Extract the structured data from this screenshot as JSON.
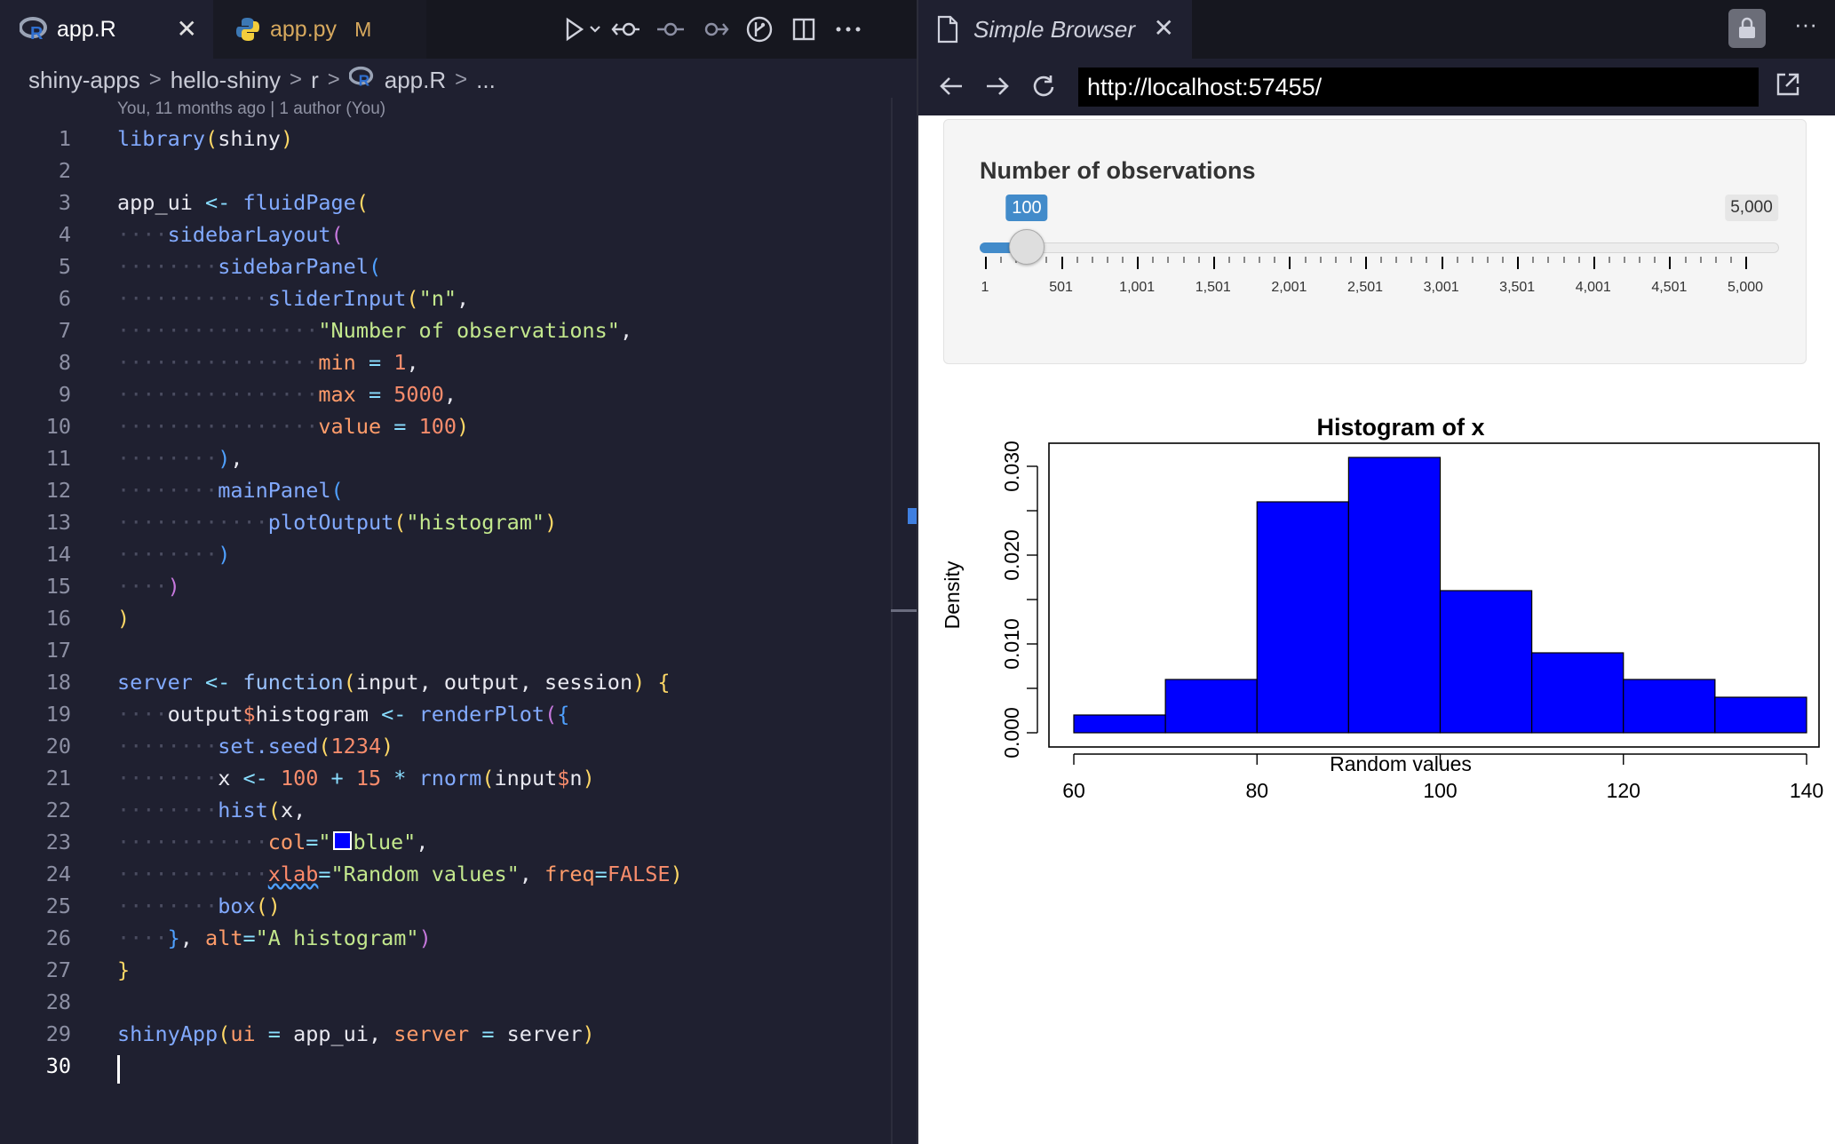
{
  "editor": {
    "tabs": [
      {
        "label": "app.R",
        "icon": "r-icon",
        "active": true
      },
      {
        "label": "app.py",
        "icon": "python-icon",
        "badge": "M",
        "active": false
      }
    ],
    "breadcrumb": [
      "shiny-apps",
      "hello-shiny",
      "r",
      "app.R",
      "..."
    ],
    "blame": "You, 11 months ago | 1 author (You)",
    "line_numbers": [
      "1",
      "2",
      "3",
      "4",
      "5",
      "6",
      "7",
      "8",
      "9",
      "10",
      "11",
      "12",
      "13",
      "14",
      "15",
      "16",
      "17",
      "18",
      "19",
      "20",
      "21",
      "22",
      "23",
      "24",
      "25",
      "26",
      "27",
      "28",
      "29",
      "30"
    ],
    "code": {
      "l1_a": "library",
      "l1_b": "(",
      "l1_c": "shiny",
      "l1_d": ")",
      "l3_a": "app_ui",
      "l3_b": " <- ",
      "l3_c": "fluidPage",
      "l3_d": "(",
      "l4_a": "sidebarLayout",
      "l4_b": "(",
      "l5_a": "sidebarPanel",
      "l5_b": "(",
      "l6_a": "sliderInput",
      "l6_b": "(",
      "l6_c": "\"n\"",
      "l6_d": ",",
      "l7_a": "\"Number of observations\"",
      "l7_b": ",",
      "l8_a": "min",
      "l8_b": " = ",
      "l8_c": "1",
      "l8_d": ",",
      "l9_a": "max",
      "l9_b": " = ",
      "l9_c": "5000",
      "l9_d": ",",
      "l10_a": "value",
      "l10_b": " = ",
      "l10_c": "100",
      "l10_d": ")",
      "l11_a": ")",
      "l11_b": ",",
      "l12_a": "mainPanel",
      "l12_b": "(",
      "l13_a": "plotOutput",
      "l13_b": "(",
      "l13_c": "\"histogram\"",
      "l13_d": ")",
      "l14_a": ")",
      "l15_a": ")",
      "l16_a": ")",
      "l18_a": "server",
      "l18_b": " <- ",
      "l18_c": "function",
      "l18_d": "(",
      "l18_e": "input, output, session",
      "l18_f": ")",
      "l18_g": " {",
      "l19_a": "output",
      "l19_b": "$",
      "l19_c": "histogram",
      "l19_d": " <- ",
      "l19_e": "renderPlot",
      "l19_f": "(",
      "l19_g": "{",
      "l20_a": "set.seed",
      "l20_b": "(",
      "l20_c": "1234",
      "l20_d": ")",
      "l21_a": "x",
      "l21_b": " <- ",
      "l21_c": "100",
      "l21_d": " + ",
      "l21_e": "15",
      "l21_f": " * ",
      "l21_g": "rnorm",
      "l21_h": "(",
      "l21_i": "input",
      "l21_j": "$",
      "l21_k": "n",
      "l21_l": ")",
      "l22_a": "hist",
      "l22_b": "(",
      "l22_c": "x,",
      "l23_a": "col",
      "l23_b": "=",
      "l23_c": "\"",
      "l23_d": "blue\"",
      "l23_e": ",",
      "l24_a": "xlab",
      "l24_b": "=",
      "l24_c": "\"Random values\"",
      "l24_d": ", ",
      "l24_e": "freq",
      "l24_f": "=",
      "l24_g": "FALSE",
      "l24_h": ")",
      "l25_a": "box",
      "l25_b": "()",
      "l26_a": "}",
      "l26_b": ", ",
      "l26_c": "alt",
      "l26_d": "=",
      "l26_e": "\"A histogram\"",
      "l26_f": ")",
      "l27_a": "}",
      "l29_a": "shinyApp",
      "l29_b": "(",
      "l29_c": "ui",
      "l29_d": " = ",
      "l29_e": "app_ui",
      "l29_f": ", ",
      "l29_g": "server",
      "l29_h": " = ",
      "l29_i": "server",
      "l29_j": ")"
    }
  },
  "browser": {
    "tab_label": "Simple Browser",
    "url": "http://localhost:57455/",
    "slider": {
      "label": "Number of observations",
      "min": 1,
      "max": 5000,
      "value": 100,
      "value_label": "100",
      "max_label": "5,000",
      "tick_labels": [
        "1",
        "501",
        "1,001",
        "1,501",
        "2,001",
        "2,501",
        "3,001",
        "3,501",
        "4,001",
        "4,501",
        "5,000"
      ]
    }
  },
  "chart_data": {
    "type": "bar",
    "title": "Histogram of x",
    "xlabel": "Random values",
    "ylabel": "Density",
    "bin_edges": [
      60,
      70,
      80,
      90,
      100,
      110,
      120,
      130,
      140
    ],
    "values": [
      0.002,
      0.006,
      0.026,
      0.031,
      0.016,
      0.009,
      0.006,
      0.004
    ],
    "xlim": [
      60,
      140
    ],
    "ylim": [
      0,
      0.031
    ],
    "x_ticks": [
      "60",
      "80",
      "100",
      "120",
      "140"
    ],
    "y_ticks": [
      "0.000",
      "0.010",
      "0.020",
      "0.030"
    ],
    "bar_color": "#0000ff",
    "grid": false
  }
}
